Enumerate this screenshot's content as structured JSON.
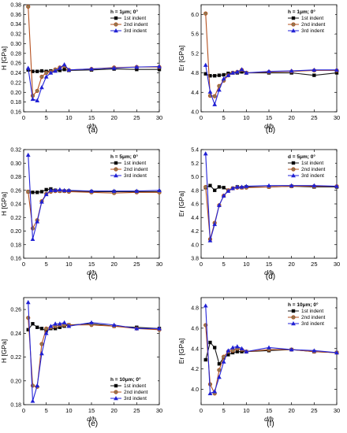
{
  "colors": {
    "series": [
      "#1a1a1a",
      "#b5501f",
      "#2323d8"
    ],
    "marker_fill": [
      "#000000",
      "#8c7a55",
      "#1f1fd0"
    ],
    "axis": "#000000"
  },
  "chart_data": [
    {
      "id": "a",
      "type": "line",
      "caption": "(a)",
      "xlabel": "d/h",
      "ylabel": "H [GPa]",
      "xlim": [
        0,
        30
      ],
      "xticks": [
        0,
        5,
        10,
        15,
        20,
        25,
        30
      ],
      "ylim": [
        0.16,
        0.38
      ],
      "yticks": [
        0.16,
        0.18,
        0.2,
        0.22,
        0.24,
        0.26,
        0.28,
        0.3,
        0.32,
        0.34,
        0.36,
        0.38
      ],
      "legend_title": "h = 1μm; 0°",
      "legend_position": "top-right",
      "x": [
        1,
        2,
        3,
        4,
        5,
        6,
        7,
        8,
        9,
        10,
        15,
        20,
        25,
        30
      ],
      "series": [
        {
          "name": "1st indent",
          "values": [
            0.246,
            0.243,
            0.243,
            0.244,
            0.243,
            0.244,
            0.244,
            0.245,
            0.247,
            0.245,
            0.246,
            0.248,
            0.247,
            0.247
          ]
        },
        {
          "name": "2nd indent",
          "values": [
            0.376,
            0.193,
            0.203,
            0.232,
            0.24,
            0.242,
            0.247,
            0.251,
            0.254,
            0.246,
            0.248,
            0.251,
            0.252,
            0.252
          ]
        },
        {
          "name": "3rd indent",
          "values": [
            0.25,
            0.186,
            0.183,
            0.21,
            0.232,
            0.24,
            0.244,
            0.25,
            0.257,
            0.246,
            0.248,
            0.25,
            0.252,
            0.253
          ]
        }
      ]
    },
    {
      "id": "b",
      "type": "line",
      "caption": "(b)",
      "xlabel": "d/h",
      "ylabel": "Er [GPa]",
      "xlim": [
        0,
        30
      ],
      "xticks": [
        0,
        5,
        10,
        15,
        20,
        25,
        30
      ],
      "ylim": [
        4.0,
        6.2
      ],
      "yticks": [
        4.0,
        4.4,
        4.8,
        5.2,
        5.6,
        6.0
      ],
      "legend_title": "h = 1μm; 0°",
      "legend_position": "top-right",
      "x": [
        1,
        2,
        3,
        4,
        5,
        6,
        7,
        8,
        9,
        10,
        15,
        20,
        25,
        30
      ],
      "series": [
        {
          "name": "1st indent",
          "values": [
            4.78,
            4.74,
            4.74,
            4.75,
            4.76,
            4.79,
            4.8,
            4.8,
            4.82,
            4.8,
            4.8,
            4.8,
            4.75,
            4.8
          ]
        },
        {
          "name": "2nd indent",
          "values": [
            6.02,
            4.33,
            4.32,
            4.53,
            4.64,
            4.75,
            4.8,
            4.82,
            4.86,
            4.8,
            4.82,
            4.83,
            4.85,
            4.85
          ]
        },
        {
          "name": "3rd indent",
          "values": [
            4.96,
            4.41,
            4.15,
            4.45,
            4.68,
            4.75,
            4.8,
            4.82,
            4.87,
            4.8,
            4.83,
            4.84,
            4.86,
            4.86
          ]
        }
      ]
    },
    {
      "id": "c",
      "type": "line",
      "caption": "(c)",
      "xlabel": "d/h",
      "ylabel": "H [GPa]",
      "xlim": [
        0,
        30
      ],
      "xticks": [
        0,
        5,
        10,
        15,
        20,
        25,
        30
      ],
      "ylim": [
        0.16,
        0.32
      ],
      "yticks": [
        0.16,
        0.18,
        0.2,
        0.22,
        0.24,
        0.26,
        0.28,
        0.3,
        0.32
      ],
      "legend_title": "h = 5μm; 0°",
      "legend_position": "top-right",
      "x": [
        1,
        2,
        3,
        4,
        5,
        6,
        7,
        8,
        9,
        10,
        15,
        20,
        25,
        30
      ],
      "series": [
        {
          "name": "1st indent",
          "values": [
            0.258,
            0.257,
            0.257,
            0.258,
            0.261,
            0.262,
            0.26,
            0.259,
            0.259,
            0.259,
            0.258,
            0.258,
            0.258,
            0.258
          ]
        },
        {
          "name": "2nd indent",
          "values": [
            0.258,
            0.204,
            0.216,
            0.244,
            0.255,
            0.258,
            0.259,
            0.259,
            0.259,
            0.258,
            0.257,
            0.256,
            0.257,
            0.257
          ]
        },
        {
          "name": "3rd indent",
          "values": [
            0.312,
            0.188,
            0.214,
            0.243,
            0.254,
            0.26,
            0.26,
            0.261,
            0.26,
            0.26,
            0.259,
            0.259,
            0.259,
            0.26
          ]
        }
      ]
    },
    {
      "id": "d",
      "type": "line",
      "caption": "(d)",
      "xlabel": "d/h",
      "ylabel": "Er [GPa]",
      "xlim": [
        0,
        30
      ],
      "xticks": [
        0,
        5,
        10,
        15,
        20,
        25,
        30
      ],
      "ylim": [
        3.8,
        5.4
      ],
      "yticks": [
        3.8,
        4.0,
        4.2,
        4.4,
        4.6,
        4.8,
        5.0,
        5.2,
        5.4
      ],
      "legend_title": "d = 5μm; 0°",
      "legend_position": "top-right",
      "x": [
        1,
        2,
        3,
        4,
        5,
        6,
        7,
        8,
        9,
        10,
        15,
        20,
        25,
        30
      ],
      "series": [
        {
          "name": "1st indent",
          "values": [
            4.84,
            4.87,
            4.8,
            4.85,
            4.84,
            4.8,
            4.83,
            4.85,
            4.84,
            4.85,
            4.85,
            4.86,
            4.85,
            4.85
          ]
        },
        {
          "name": "2nd indent",
          "values": [
            4.85,
            4.08,
            4.32,
            4.58,
            4.72,
            4.8,
            4.83,
            4.84,
            4.84,
            4.84,
            4.85,
            4.86,
            4.86,
            4.86
          ]
        },
        {
          "name": "3rd indent",
          "values": [
            5.34,
            4.06,
            4.3,
            4.58,
            4.72,
            4.79,
            4.83,
            4.85,
            4.85,
            4.86,
            4.87,
            4.87,
            4.87,
            4.86
          ]
        }
      ]
    },
    {
      "id": "e",
      "type": "line",
      "caption": "(e)",
      "xlabel": "d/h",
      "ylabel": "H [GPa]",
      "xlim": [
        0,
        30
      ],
      "xticks": [
        0,
        5,
        10,
        15,
        20,
        25,
        30
      ],
      "ylim": [
        0.18,
        0.27
      ],
      "yticks": [
        0.18,
        0.2,
        0.22,
        0.24,
        0.26
      ],
      "legend_title": "h = 10μm; 0°",
      "legend_position": "bottom-right",
      "x": [
        1,
        2,
        3,
        4,
        5,
        6,
        7,
        8,
        9,
        10,
        15,
        20,
        25,
        30
      ],
      "series": [
        {
          "name": "1st indent",
          "values": [
            0.243,
            0.248,
            0.245,
            0.244,
            0.242,
            0.244,
            0.244,
            0.245,
            0.246,
            0.247,
            0.248,
            0.246,
            0.245,
            0.244
          ]
        },
        {
          "name": "2nd indent",
          "values": [
            0.253,
            0.196,
            0.195,
            0.231,
            0.244,
            0.245,
            0.246,
            0.247,
            0.247,
            0.247,
            0.247,
            0.246,
            0.244,
            0.243
          ]
        },
        {
          "name": "3rd indent",
          "values": [
            0.266,
            0.183,
            0.196,
            0.223,
            0.24,
            0.246,
            0.248,
            0.248,
            0.249,
            0.246,
            0.249,
            0.247,
            0.244,
            0.244
          ]
        }
      ]
    },
    {
      "id": "f",
      "type": "line",
      "caption": "(f)",
      "xlabel": "d/h",
      "ylabel": "Er [GPa]",
      "xlim": [
        0,
        30
      ],
      "xticks": [
        0,
        5,
        10,
        15,
        20,
        25,
        30
      ],
      "ylim": [
        3.85,
        4.9
      ],
      "yticks": [
        4.0,
        4.2,
        4.4,
        4.6,
        4.8
      ],
      "legend_title": "h = 10μm; 0°",
      "legend_position": "top-right",
      "x": [
        1,
        2,
        3,
        4,
        5,
        6,
        7,
        8,
        9,
        10,
        15,
        20,
        25,
        30
      ],
      "series": [
        {
          "name": "1st indent",
          "values": [
            4.29,
            4.46,
            4.41,
            4.25,
            4.31,
            4.34,
            4.36,
            4.37,
            4.37,
            4.37,
            4.38,
            4.39,
            4.37,
            4.36
          ]
        },
        {
          "name": "2nd indent",
          "values": [
            4.63,
            4.05,
            3.96,
            4.19,
            4.32,
            4.37,
            4.38,
            4.4,
            4.39,
            4.37,
            4.39,
            4.39,
            4.37,
            4.36
          ]
        },
        {
          "name": "3rd indent",
          "values": [
            4.82,
            3.96,
            3.98,
            4.12,
            4.27,
            4.38,
            4.41,
            4.42,
            4.4,
            4.37,
            4.41,
            4.39,
            4.38,
            4.36
          ]
        }
      ]
    }
  ]
}
